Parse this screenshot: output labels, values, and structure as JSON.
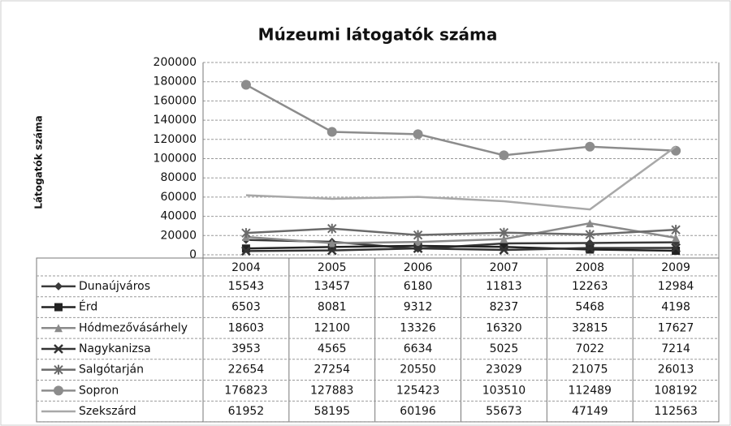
{
  "chart_data": {
    "type": "line",
    "title": "Múzeumi látogatók száma",
    "y_label": "Látogatók száma",
    "categories": [
      "2004",
      "2005",
      "2006",
      "2007",
      "2008",
      "2009"
    ],
    "ylim": [
      0,
      200000
    ],
    "yticks": [
      0,
      20000,
      40000,
      60000,
      80000,
      100000,
      120000,
      140000,
      160000,
      180000,
      200000
    ],
    "grid": true,
    "series": [
      {
        "name": "Dunaújváros",
        "color": "#3a3a3a",
        "marker": "diamond",
        "values": [
          15543,
          13457,
          6180,
          11813,
          12263,
          12984
        ]
      },
      {
        "name": "Érd",
        "color": "#222222",
        "marker": "square",
        "values": [
          6503,
          8081,
          9312,
          8237,
          5468,
          4198
        ]
      },
      {
        "name": "Hódmezővásárhely",
        "color": "#8a8a8a",
        "marker": "triangle",
        "values": [
          18603,
          12100,
          13326,
          16320,
          32815,
          17627
        ]
      },
      {
        "name": "Nagykanizsa",
        "color": "#333333",
        "marker": "x",
        "values": [
          3953,
          4565,
          6634,
          5025,
          7022,
          7214
        ]
      },
      {
        "name": "Salgótarján",
        "color": "#6a6a6a",
        "marker": "star",
        "values": [
          22654,
          27254,
          20550,
          23029,
          21075,
          26013
        ]
      },
      {
        "name": "Sopron",
        "color": "#8c8c8c",
        "marker": "circle",
        "values": [
          176823,
          127883,
          125423,
          103510,
          112489,
          108192
        ]
      },
      {
        "name": "Szekszárd",
        "color": "#a8a8a8",
        "marker": "none",
        "values": [
          61952,
          58195,
          60196,
          55673,
          47149,
          112563
        ]
      }
    ]
  }
}
